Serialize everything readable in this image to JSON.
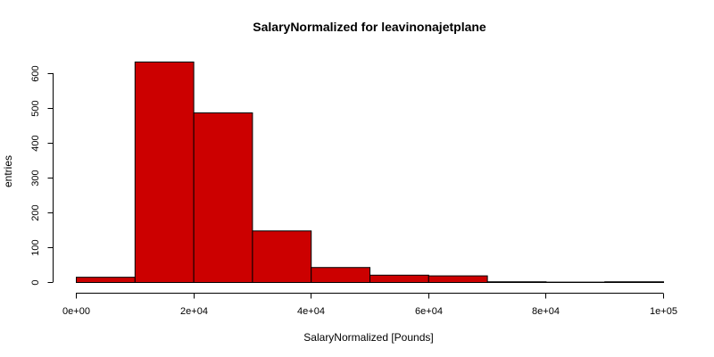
{
  "chart_data": {
    "type": "bar",
    "title": "SalaryNormalized for leavinonajetplane",
    "xlabel": "SalaryNormalized [Pounds]",
    "ylabel": "entries",
    "bar_color": "#cc0000",
    "bin_edges": [
      0,
      10000,
      20000,
      30000,
      40000,
      50000,
      60000,
      70000,
      80000,
      90000,
      100000
    ],
    "values": [
      15,
      633,
      487,
      148,
      43,
      21,
      19,
      2,
      1,
      2
    ],
    "xlim": [
      0,
      100000
    ],
    "ylim": [
      0,
      633
    ],
    "x_ticks": [
      0,
      20000,
      40000,
      60000,
      80000,
      100000
    ],
    "x_tick_labels": [
      "0e+00",
      "2e+04",
      "4e+04",
      "6e+04",
      "8e+04",
      "1e+05"
    ],
    "y_ticks": [
      0,
      100,
      200,
      300,
      400,
      500,
      600
    ],
    "y_tick_labels": [
      "0",
      "100",
      "200",
      "300",
      "400",
      "500",
      "600"
    ],
    "grid": false,
    "legend": "none"
  }
}
